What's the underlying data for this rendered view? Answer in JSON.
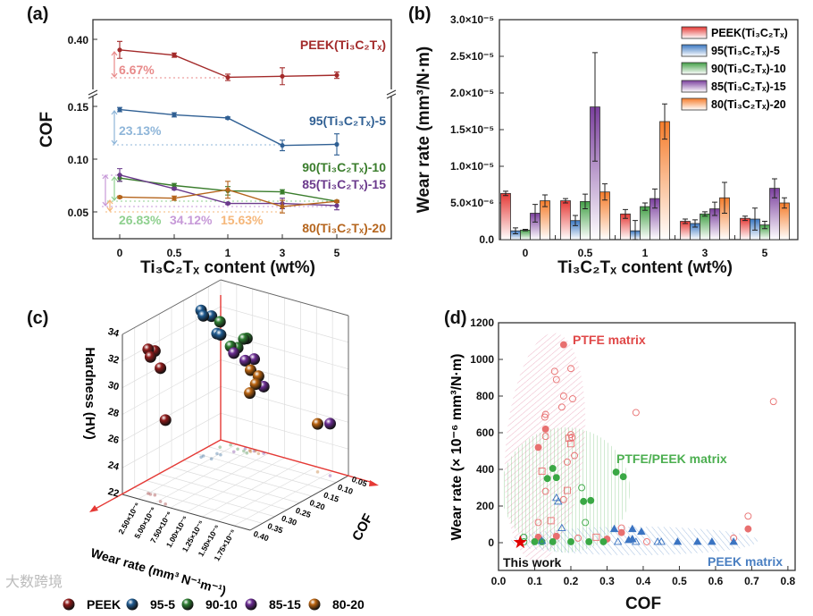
{
  "watermark": "大数跨境",
  "chart_data": [
    {
      "panel": "(a)",
      "type": "line",
      "xlabel": "Ti₃C₂Tₓ content (wt%)",
      "ylabel": "COF",
      "categories": [
        "0",
        "0.5",
        "1",
        "3",
        "5"
      ],
      "yticks": [
        "0.40",
        "0.15",
        "0.10",
        "0.05"
      ],
      "y_break": true,
      "ylim_lower": [
        0.025,
        0.16
      ],
      "ylim_upper": [
        0.355,
        0.42
      ],
      "series": [
        {
          "name": "PEEK(Ti₃C₂Tₓ)",
          "color": "#a32a2a",
          "values": [
            0.39,
            0.385,
            0.364,
            0.365,
            0.366
          ],
          "errors": [
            0.008,
            0.002,
            0.003,
            0.008,
            0.003
          ],
          "segment": "upper"
        },
        {
          "name": "95(Ti₃C₂Tₓ)-5",
          "color": "#2f5f93",
          "values": [
            0.147,
            0.142,
            0.139,
            0.113,
            0.114
          ],
          "errors": [
            0.002,
            0.002,
            0.001,
            0.005,
            0.01
          ],
          "segment": "lower"
        },
        {
          "name": "90(Ti₃C₂Tₓ)-10",
          "color": "#3a7d2c",
          "values": [
            0.082,
            0.075,
            0.07,
            0.069,
            0.06
          ],
          "errors": [
            0.003,
            0.002,
            0.004,
            0.002,
            0.001
          ],
          "segment": "lower"
        },
        {
          "name": "85(Ti₃C₂Tₓ)-15",
          "color": "#6b3a8c",
          "values": [
            0.085,
            0.072,
            0.058,
            0.058,
            0.056
          ],
          "errors": [
            0.006,
            0.001,
            0.001,
            0.005,
            0.004
          ],
          "segment": "lower"
        },
        {
          "name": "80(Ti₃C₂Tₓ)-20",
          "color": "#b5651d",
          "values": [
            0.064,
            0.063,
            0.071,
            0.055,
            0.06
          ],
          "errors": [
            0.001,
            0.002,
            0.008,
            0.006,
            0.001
          ],
          "segment": "lower"
        }
      ],
      "annotations": [
        {
          "text": "6.67%",
          "color": "#e88a8a"
        },
        {
          "text": "23.13%",
          "color": "#8fb6d9"
        },
        {
          "text": "26.83%",
          "color": "#8fd08f"
        },
        {
          "text": "34.12%",
          "color": "#c79ad8"
        },
        {
          "text": "15.63%",
          "color": "#f5b77a"
        }
      ]
    },
    {
      "panel": "(b)",
      "type": "bar",
      "xlabel": "Ti₃C₂Tₓ content (wt%)",
      "ylabel": "Wear rate (mm³/N·m)",
      "categories": [
        "0",
        "0.5",
        "1",
        "3",
        "5"
      ],
      "ylim": [
        0,
        3e-05
      ],
      "yticks": [
        {
          "v": 0,
          "label": "0.0"
        },
        {
          "v": 5e-06,
          "label": "5.0×10⁻⁶"
        },
        {
          "v": 1e-05,
          "label": "1.0×10⁻⁵"
        },
        {
          "v": 1.5e-05,
          "label": "1.5×10⁻⁵"
        },
        {
          "v": 2e-05,
          "label": "2.0×10⁻⁵"
        },
        {
          "v": 2.5e-05,
          "label": "2.5×10⁻⁵"
        },
        {
          "v": 3e-05,
          "label": "3.0×10⁻⁵"
        }
      ],
      "legend_position": "top-right",
      "series": [
        {
          "name": "PEEK(Ti₃C₂Tₓ)",
          "color": "#e53935",
          "values": [
            6.3e-06,
            5.3e-06,
            3.5e-06,
            2.5e-06,
            2.9e-06
          ],
          "errors": [
            3e-07,
            3e-07,
            6e-07,
            3e-07,
            3e-07
          ]
        },
        {
          "name": "95(Ti₃C₂Tₓ)-5",
          "color": "#3b78c2",
          "values": [
            1.2e-06,
            2.6e-06,
            1.2e-06,
            2.2e-06,
            2.8e-06
          ],
          "errors": [
            4e-07,
            7e-07,
            1.4e-06,
            5e-07,
            1.5e-06
          ]
        },
        {
          "name": "90(Ti₃C₂Tₓ)-10",
          "color": "#43a047",
          "values": [
            1.3e-06,
            5.2e-06,
            4.5e-06,
            3.5e-06,
            2e-06
          ],
          "errors": [
            1e-07,
            1e-06,
            5e-07,
            3e-07,
            5e-07
          ]
        },
        {
          "name": "85(Ti₃C₂Tₓ)-15",
          "color": "#7b3f9e",
          "values": [
            3.6e-06,
            1.81e-05,
            5.6e-06,
            4.2e-06,
            7e-06
          ],
          "errors": [
            1.2e-06,
            7.4e-06,
            1.3e-06,
            9e-07,
            1.3e-06
          ]
        },
        {
          "name": "80(Ti₃C₂Tₓ)-20",
          "color": "#f57c2a",
          "values": [
            5.3e-06,
            6.5e-06,
            1.61e-05,
            5.7e-06,
            5e-06
          ],
          "errors": [
            8e-07,
            1.1e-06,
            2.4e-06,
            2.1e-06,
            7e-07
          ]
        }
      ]
    },
    {
      "panel": "(c)",
      "type": "scatter",
      "projection": "3d",
      "xlabel": "Wear rate (mm³ N⁻¹m⁻¹)",
      "ylabel": "COF",
      "zlabel": "Hardness (HV)",
      "xticks": [
        "2.50×10⁻⁶",
        "5.00×10⁻⁶",
        "7.50×10⁻⁶",
        "1.00×10⁻⁵",
        "1.25×10⁻⁵",
        "1.50×10⁻⁵",
        "1.75×10⁻⁵"
      ],
      "xtick_values": [
        2.5e-06,
        5e-06,
        7.5e-06,
        1e-05,
        1.25e-05,
        1.5e-05,
        1.75e-05
      ],
      "yticks": [
        "0.05",
        "0.10",
        "0.15",
        "0.20",
        "0.25",
        "0.30",
        "0.35",
        "0.40"
      ],
      "zticks": [
        "22",
        "24",
        "26",
        "28",
        "30",
        "32",
        "34"
      ],
      "xlim": [
        0,
        2e-05
      ],
      "ylim": [
        0.05,
        0.4
      ],
      "zlim": [
        22,
        34
      ],
      "series": [
        {
          "name": "PEEK",
          "color": "#8e1b1b",
          "wear": [
            6.3e-06,
            5.3e-06,
            3.5e-06,
            2.5e-06,
            2.9e-06
          ],
          "cof": [
            0.39,
            0.385,
            0.364,
            0.365,
            0.366
          ],
          "hardness": [
            28.3,
            32.0,
            32.8,
            32.8,
            32.3
          ]
        },
        {
          "name": "95-5",
          "color": "#1f5a8f",
          "wear": [
            1.2e-06,
            2.6e-06,
            1.2e-06,
            2.2e-06,
            2.8e-06
          ],
          "cof": [
            0.147,
            0.142,
            0.139,
            0.113,
            0.114
          ],
          "hardness": [
            33.0,
            32.7,
            32.5,
            31.0,
            31.0
          ]
        },
        {
          "name": "90-10",
          "color": "#2e7d32",
          "wear": [
            1.3e-06,
            5.2e-06,
            4.5e-06,
            3.5e-06,
            2e-06
          ],
          "cof": [
            0.082,
            0.075,
            0.07,
            0.069,
            0.06
          ],
          "hardness": [
            31.4,
            30.6,
            30.4,
            29.6,
            29.4
          ]
        },
        {
          "name": "85-15",
          "color": "#6a2c91",
          "wear": [
            3.6e-06,
            1.81e-05,
            5.6e-06,
            4.2e-06,
            7e-06
          ],
          "cof": [
            0.085,
            0.072,
            0.058,
            0.058,
            0.056
          ],
          "hardness": [
            29.4,
            25.9,
            28.9,
            28.6,
            27.0
          ]
        },
        {
          "name": "80-20",
          "color": "#b8620f",
          "wear": [
            5.3e-06,
            6.5e-06,
            1.61e-05,
            5.7e-06,
            5e-06
          ],
          "cof": [
            0.064,
            0.063,
            0.071,
            0.055,
            0.06
          ],
          "hardness": [
            28.1,
            27.8,
            25.6,
            27.0,
            26.3
          ]
        }
      ]
    },
    {
      "panel": "(d)",
      "type": "scatter",
      "xlabel": "COF",
      "ylabel": "Wear rate (× 10⁻⁶ mm³/N·m)",
      "xlim": [
        0,
        0.82
      ],
      "ylim": [
        -150,
        1200
      ],
      "xticks": [
        "0.0",
        "0.1",
        "0.2",
        "0.3",
        "0.4",
        "0.5",
        "0.6",
        "0.7",
        "0.8"
      ],
      "yticks": [
        "0",
        "200",
        "400",
        "600",
        "800",
        "1000",
        "1200"
      ],
      "region_labels": [
        {
          "text": "PTFE matrix",
          "color": "#e04848"
        },
        {
          "text": "PTFE/PEEK matrix",
          "color": "#4caf50"
        },
        {
          "text": "PEEK matrix",
          "color": "#4a7fc1"
        }
      ],
      "this_work": {
        "label": "This work",
        "cof": 0.06,
        "wear": 2,
        "color": "#e00000"
      },
      "series": [
        {
          "name": "PTFE matrix",
          "color": "#e87070",
          "points": [
            [
              0.18,
              1080,
              1
            ],
            [
              0.2,
              950,
              0
            ],
            [
              0.155,
              935,
              0
            ],
            [
              0.16,
              890,
              0
            ],
            [
              0.18,
              800,
              0
            ],
            [
              0.205,
              785,
              0
            ],
            [
              0.175,
              740,
              0
            ],
            [
              0.38,
              710,
              0
            ],
            [
              0.13,
              700,
              0
            ],
            [
              0.128,
              685,
              0
            ],
            [
              0.13,
              620,
              1
            ],
            [
              0.2,
              590,
              0
            ],
            [
              0.203,
              575,
              0
            ],
            [
              0.13,
              580,
              0
            ],
            [
              0.195,
              570,
              0
            ],
            [
              0.2,
              540,
              0
            ],
            [
              0.11,
              520,
              1
            ],
            [
              0.21,
              475,
              0
            ],
            [
              0.19,
              440,
              0
            ],
            [
              0.12,
              390,
              0
            ],
            [
              0.13,
              280,
              0
            ],
            [
              0.19,
              285,
              0
            ],
            [
              0.18,
              235,
              0
            ],
            [
              0.11,
              110,
              0
            ],
            [
              0.145,
              120,
              0
            ],
            [
              0.76,
              770,
              0
            ],
            [
              0.69,
              145,
              0
            ],
            [
              0.69,
              75,
              1
            ],
            [
              0.34,
              80,
              0
            ],
            [
              0.34,
              55,
              1
            ],
            [
              0.65,
              25,
              0
            ],
            [
              0.11,
              30,
              1
            ],
            [
              0.16,
              35,
              1
            ],
            [
              0.27,
              30,
              0
            ],
            [
              0.3,
              20,
              1
            ],
            [
              0.22,
              25,
              0
            ],
            [
              0.41,
              5,
              0
            ]
          ]
        },
        {
          "name": "PTFE/PEEK matrix",
          "color": "#3aa845",
          "points": [
            [
              0.15,
              405,
              1
            ],
            [
              0.135,
              350,
              1
            ],
            [
              0.16,
              355,
              1
            ],
            [
              0.325,
              385,
              1
            ],
            [
              0.345,
              360,
              1
            ],
            [
              0.23,
              300,
              0
            ],
            [
              0.235,
              225,
              1
            ],
            [
              0.255,
              230,
              1
            ],
            [
              0.24,
              110,
              0
            ],
            [
              0.07,
              5,
              0
            ],
            [
              0.1,
              5,
              1
            ],
            [
              0.12,
              5,
              1
            ],
            [
              0.15,
              5,
              1
            ],
            [
              0.2,
              5,
              1
            ],
            [
              0.25,
              5,
              1
            ],
            [
              0.29,
              5,
              1
            ],
            [
              0.07,
              30,
              0
            ]
          ]
        },
        {
          "name": "PEEK matrix",
          "color": "#3b74c2",
          "points": [
            [
              0.16,
              245,
              0
            ],
            [
              0.165,
              225,
              0
            ],
            [
              0.175,
              80,
              0
            ],
            [
              0.32,
              75,
              1
            ],
            [
              0.37,
              75,
              1
            ],
            [
              0.395,
              60,
              1
            ],
            [
              0.36,
              15,
              1
            ],
            [
              0.37,
              20,
              1
            ],
            [
              0.38,
              5,
              0
            ],
            [
              0.44,
              5,
              0
            ],
            [
              0.45,
              5,
              0
            ],
            [
              0.495,
              5,
              1
            ],
            [
              0.55,
              5,
              1
            ],
            [
              0.59,
              5,
              1
            ],
            [
              0.65,
              5,
              1
            ],
            [
              0.33,
              5,
              0
            ],
            [
              0.12,
              10,
              0
            ]
          ]
        }
      ]
    }
  ],
  "labels": {
    "a_panel": "(a)",
    "b_panel": "(b)",
    "c_panel": "(c)",
    "d_panel": "(d)"
  }
}
